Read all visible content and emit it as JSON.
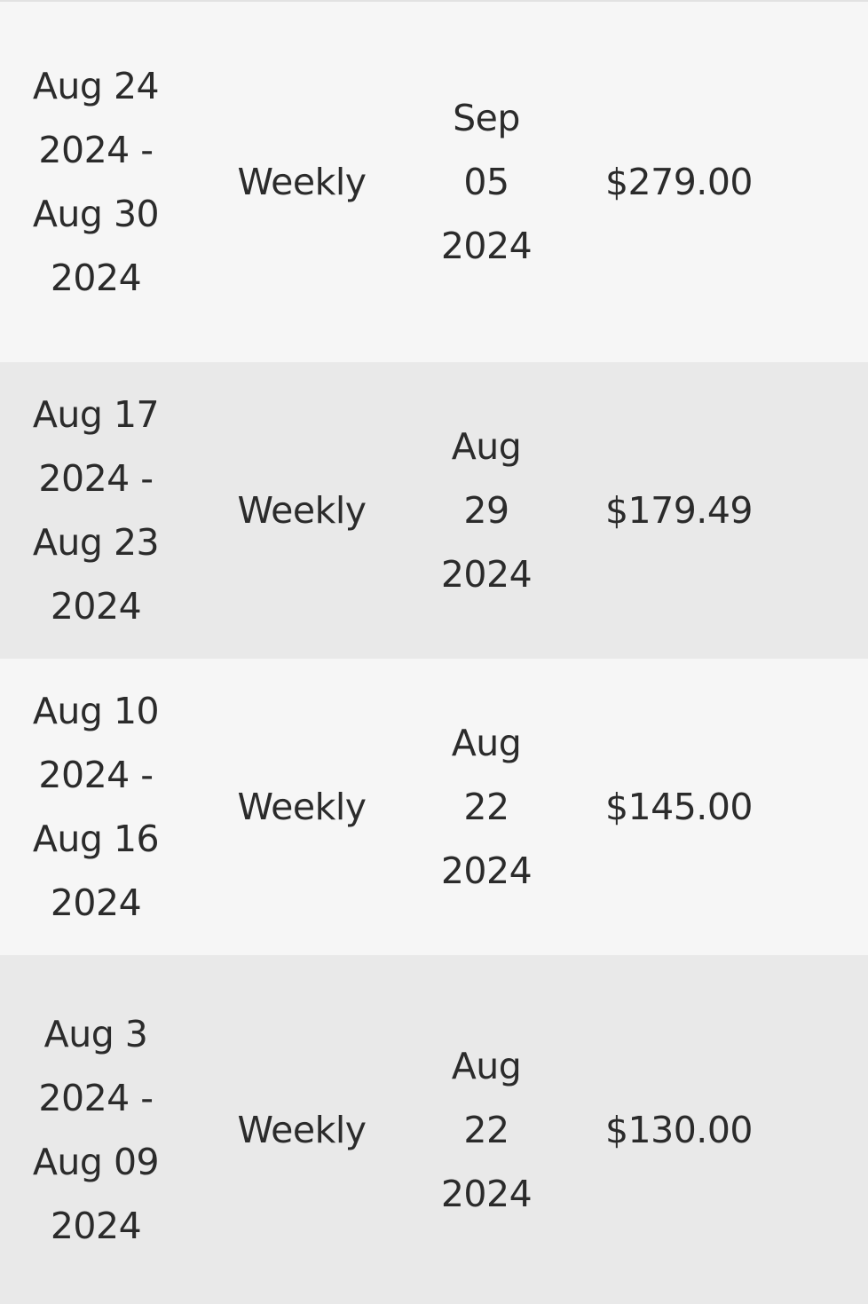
{
  "table": {
    "rows": [
      {
        "period": "Aug 24 2024 - Aug 30 2024",
        "frequency": "Weekly",
        "pay_date": "Sep 05 2024",
        "amount": "$279.00"
      },
      {
        "period": "Aug 17 2024 - Aug 23 2024",
        "frequency": "Weekly",
        "pay_date": "Aug 29 2024",
        "amount": "$179.49"
      },
      {
        "period": "Aug 10 2024 - Aug 16 2024",
        "frequency": "Weekly",
        "pay_date": "Aug 22 2024",
        "amount": "$145.00"
      },
      {
        "period": "Aug 3 2024 - Aug 09 2024",
        "frequency": "Weekly",
        "pay_date": "Aug 22 2024",
        "amount": "$130.00"
      }
    ]
  }
}
